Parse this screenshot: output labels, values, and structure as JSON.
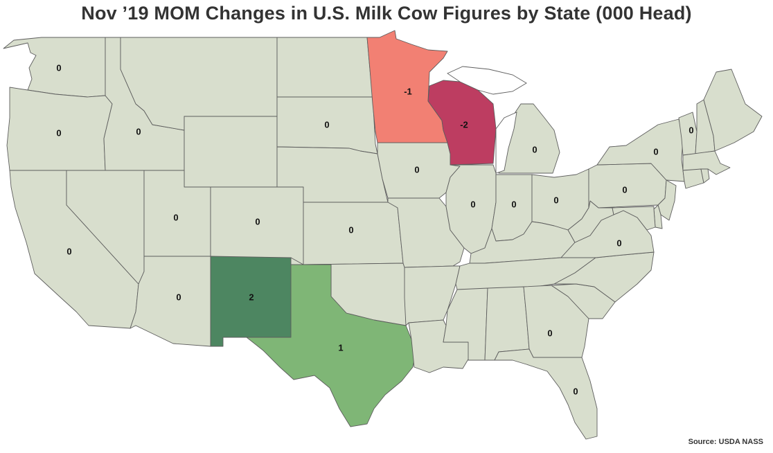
{
  "title": "Nov ’19 MOM Changes in U.S. Milk Cow Figures by State (000 Head)",
  "source": "Source: USDA NASS",
  "colors": {
    "zero": "#d8decd",
    "neg1": "#f28073",
    "neg2": "#bd3d61",
    "pos1": "#7fb676",
    "pos2": "#4d8661"
  },
  "states": [
    {
      "id": "WA",
      "value": 0,
      "label": "0"
    },
    {
      "id": "OR",
      "value": 0,
      "label": "0"
    },
    {
      "id": "CA",
      "value": 0,
      "label": "0"
    },
    {
      "id": "ID",
      "value": 0,
      "label": "0"
    },
    {
      "id": "NV",
      "value": 0,
      "label": "0"
    },
    {
      "id": "MT",
      "value": 0,
      "label": ""
    },
    {
      "id": "WY",
      "value": 0,
      "label": ""
    },
    {
      "id": "UT",
      "value": 0,
      "label": "0"
    },
    {
      "id": "AZ",
      "value": 0,
      "label": "0"
    },
    {
      "id": "CO",
      "value": 0,
      "label": "0"
    },
    {
      "id": "NM",
      "value": 2,
      "label": "2"
    },
    {
      "id": "ND",
      "value": 0,
      "label": ""
    },
    {
      "id": "SD",
      "value": 0,
      "label": "0"
    },
    {
      "id": "NE",
      "value": 0,
      "label": ""
    },
    {
      "id": "KS",
      "value": 0,
      "label": "0"
    },
    {
      "id": "OK",
      "value": 0,
      "label": ""
    },
    {
      "id": "TX",
      "value": 1,
      "label": "1"
    },
    {
      "id": "MN",
      "value": -1,
      "label": "-1"
    },
    {
      "id": "IA",
      "value": 0,
      "label": "0"
    },
    {
      "id": "MO",
      "value": 0,
      "label": ""
    },
    {
      "id": "AR",
      "value": 0,
      "label": ""
    },
    {
      "id": "LA",
      "value": 0,
      "label": ""
    },
    {
      "id": "WI",
      "value": -2,
      "label": "-2"
    },
    {
      "id": "IL",
      "value": 0,
      "label": "0"
    },
    {
      "id": "MI",
      "value": 0,
      "label": "0"
    },
    {
      "id": "IN",
      "value": 0,
      "label": "0"
    },
    {
      "id": "OH",
      "value": 0,
      "label": "0"
    },
    {
      "id": "KY",
      "value": 0,
      "label": ""
    },
    {
      "id": "TN",
      "value": 0,
      "label": ""
    },
    {
      "id": "MS",
      "value": 0,
      "label": ""
    },
    {
      "id": "AL",
      "value": 0,
      "label": ""
    },
    {
      "id": "GA",
      "value": 0,
      "label": "0"
    },
    {
      "id": "FL",
      "value": 0,
      "label": "0"
    },
    {
      "id": "SC",
      "value": 0,
      "label": ""
    },
    {
      "id": "NC",
      "value": 0,
      "label": ""
    },
    {
      "id": "VA",
      "value": 0,
      "label": "0"
    },
    {
      "id": "WV",
      "value": 0,
      "label": ""
    },
    {
      "id": "PA",
      "value": 0,
      "label": "0"
    },
    {
      "id": "NY",
      "value": 0,
      "label": "0"
    },
    {
      "id": "VT",
      "value": 0,
      "label": "0"
    },
    {
      "id": "NH",
      "value": 0,
      "label": ""
    },
    {
      "id": "ME",
      "value": 0,
      "label": ""
    },
    {
      "id": "MA",
      "value": 0,
      "label": ""
    },
    {
      "id": "CT",
      "value": 0,
      "label": ""
    },
    {
      "id": "RI",
      "value": 0,
      "label": ""
    },
    {
      "id": "NJ",
      "value": 0,
      "label": ""
    },
    {
      "id": "DE",
      "value": 0,
      "label": ""
    },
    {
      "id": "MD",
      "value": 0,
      "label": ""
    }
  ]
}
